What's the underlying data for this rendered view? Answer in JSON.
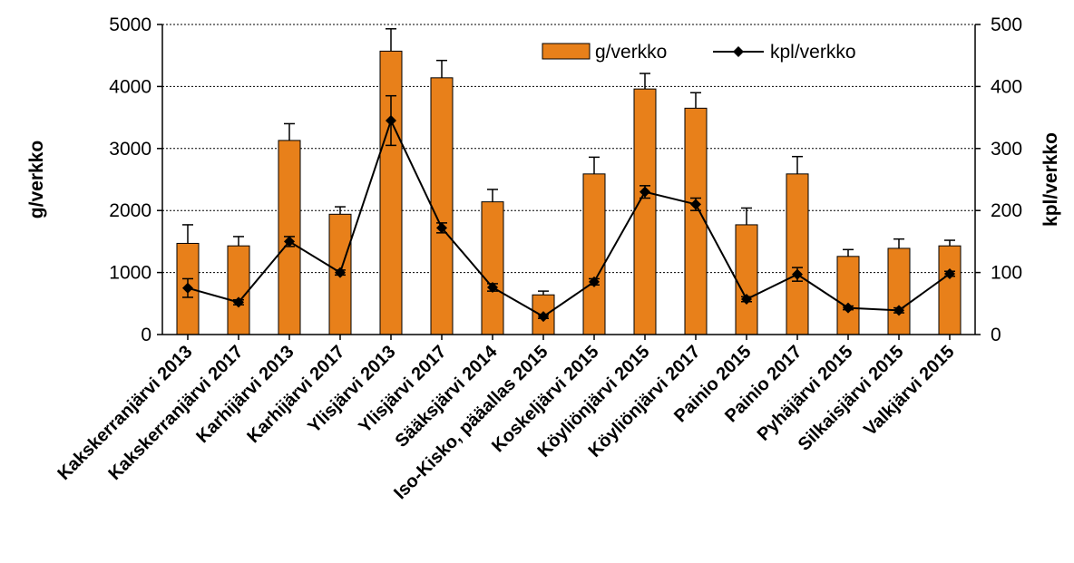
{
  "chart_data": {
    "type": "bar",
    "categories": [
      "Kakskerranjärvi 2013",
      "Kakskerranjärvi 2017",
      "Karhijärvi 2013",
      "Karhijärvi 2017",
      "Ylisjärvi 2013",
      "Ylisjärvi 2017",
      "Sääksjärvi 2014",
      "Iso-Kisko, pääallas 2015",
      "Koskeljärvi 2015",
      "Köyliönjärvi 2015",
      "Köyliönjärvi 2017",
      "Painio 2015",
      "Painio 2017",
      "Pyhäjärvi 2015",
      "Silkaisjärvi 2015",
      "Valkjärvi 2015"
    ],
    "series": [
      {
        "name": "g/verkko",
        "type": "bar",
        "axis": "left",
        "values": [
          1470,
          1430,
          3130,
          1940,
          4570,
          4140,
          2140,
          640,
          2590,
          3960,
          3650,
          1770,
          2590,
          1260,
          1390,
          1430
        ],
        "error": [
          300,
          150,
          270,
          120,
          360,
          280,
          200,
          60,
          270,
          250,
          250,
          270,
          280,
          110,
          150,
          90
        ]
      },
      {
        "name": "kpl/verkko",
        "type": "line",
        "axis": "right",
        "values": [
          75,
          52,
          150,
          100,
          345,
          172,
          76,
          29,
          85,
          230,
          210,
          57,
          97,
          43,
          39,
          98
        ],
        "error": [
          15,
          4,
          8,
          4,
          40,
          8,
          6,
          3,
          5,
          10,
          10,
          4,
          11,
          3,
          4,
          4
        ]
      }
    ],
    "ylabel": "g/verkko",
    "y2label": "kpl/verkko",
    "ylim": [
      0,
      5000
    ],
    "y2lim": [
      0,
      500
    ],
    "yticks": [
      "0",
      "1000",
      "2000",
      "3000",
      "4000",
      "5000"
    ],
    "y2ticks": [
      "0",
      "100",
      "200",
      "300",
      "400",
      "500"
    ],
    "grid": true,
    "legend_position": "top-right",
    "colors": {
      "bar": "#e8801a",
      "bar_edge": "#000000",
      "line": "#000000"
    }
  }
}
